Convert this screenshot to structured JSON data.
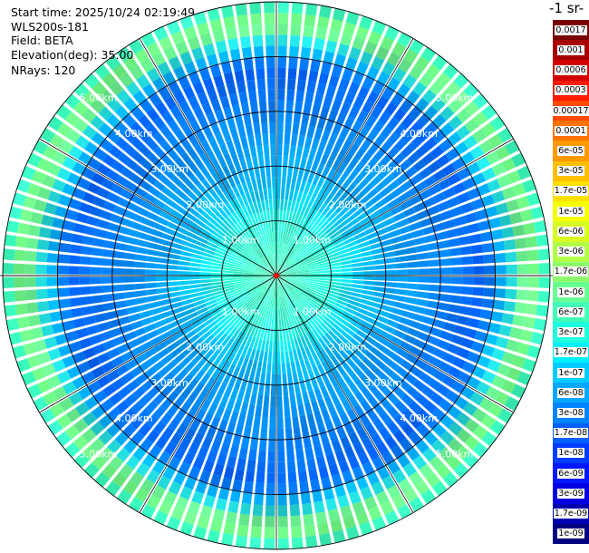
{
  "info": {
    "start_time": "Start time: 2025/10/24 02:19:49",
    "device": "WLS200s-181",
    "field": "Field: BETA",
    "elevation": "Elevation(deg): 35.00",
    "nrays": "NRays: 120"
  },
  "colorbar": {
    "title": "-1 sr-",
    "entries": [
      {
        "label": "0.0017",
        "color": "#7a0000"
      },
      {
        "label": "0.001",
        "color": "#a80000"
      },
      {
        "label": "0.0006",
        "color": "#d40000"
      },
      {
        "label": "0.0003",
        "color": "#ff1a00"
      },
      {
        "label": "0.00017",
        "color": "#ff4a00"
      },
      {
        "label": "0.0001",
        "color": "#ff7200"
      },
      {
        "label": "6e-05",
        "color": "#ff9a00"
      },
      {
        "label": "3e-05",
        "color": "#ffc000"
      },
      {
        "label": "1.7e-05",
        "color": "#ffe000"
      },
      {
        "label": "1e-05",
        "color": "#f5ff00"
      },
      {
        "label": "6e-06",
        "color": "#d6ff21"
      },
      {
        "label": "3e-06",
        "color": "#b2ff47"
      },
      {
        "label": "1.7e-06",
        "color": "#8dff6d"
      },
      {
        "label": "1e-06",
        "color": "#68ff92"
      },
      {
        "label": "6e-07",
        "color": "#44ffb8"
      },
      {
        "label": "3e-07",
        "color": "#1fffdd"
      },
      {
        "label": "1.7e-07",
        "color": "#00f0ff"
      },
      {
        "label": "1e-07",
        "color": "#00ccff"
      },
      {
        "label": "6e-08",
        "color": "#00a8ff"
      },
      {
        "label": "3e-08",
        "color": "#0084ff"
      },
      {
        "label": "1.7e-08",
        "color": "#0060ff"
      },
      {
        "label": "1e-08",
        "color": "#003cff"
      },
      {
        "label": "6e-09",
        "color": "#0018ff"
      },
      {
        "label": "3e-09",
        "color": "#0000e0"
      },
      {
        "label": "1.7e-09",
        "color": "#0000b0"
      },
      {
        "label": "1e-09",
        "color": "#000080"
      }
    ]
  },
  "chart_data": {
    "type": "heatmap",
    "projection": "polar-ppi",
    "nrays": 120,
    "range_rings_km": [
      1,
      2,
      3,
      4,
      5
    ],
    "ring_labels": [
      "1.00km",
      "2.00km",
      "3.00km",
      "4.00km",
      "5.00km"
    ],
    "max_range_km": 5,
    "spoke_step_deg": 30,
    "range_profile": [
      {
        "range_km": 0.0,
        "color": "#44ffb8"
      },
      {
        "range_km": 1.0,
        "color": "#1fffdd"
      },
      {
        "range_km": 1.5,
        "color": "#00ccff"
      },
      {
        "range_km": 2.0,
        "color": "#00a8ff"
      },
      {
        "range_km": 3.0,
        "color": "#0084ff"
      },
      {
        "range_km": 3.8,
        "color": "#0060ff"
      },
      {
        "range_km": 4.2,
        "color": "#00ccff"
      },
      {
        "range_km": 4.6,
        "color": "#8dff6d"
      },
      {
        "range_km": 5.0,
        "color": "#1fffdd"
      }
    ]
  }
}
